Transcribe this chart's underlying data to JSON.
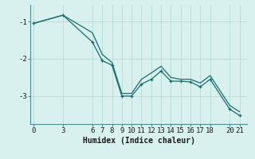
{
  "xlabel": "Humidex (Indice chaleur)",
  "background_color": "#d8f0ee",
  "line_color": "#1a6b6b",
  "marker": "+",
  "x_main": [
    0,
    3,
    6,
    7,
    8,
    9,
    10,
    11,
    12,
    13,
    14,
    15,
    16,
    17,
    18,
    20,
    21
  ],
  "y_main": [
    -1.05,
    -0.83,
    -1.55,
    -2.05,
    -2.17,
    -3.0,
    -3.0,
    -2.68,
    -2.55,
    -2.33,
    -2.6,
    -2.6,
    -2.62,
    -2.75,
    -2.55,
    -3.35,
    -3.52
  ],
  "x_upper": [
    0,
    3,
    6,
    7,
    8,
    9,
    10,
    11,
    12,
    13,
    14,
    15,
    16,
    17,
    18,
    20,
    21
  ],
  "y_upper": [
    -1.05,
    -0.83,
    -1.3,
    -1.88,
    -2.1,
    -2.93,
    -2.93,
    -2.55,
    -2.38,
    -2.2,
    -2.5,
    -2.55,
    -2.55,
    -2.65,
    -2.45,
    -3.25,
    -3.42
  ],
  "ylim": [
    -3.75,
    -0.55
  ],
  "xlim": [
    -0.3,
    21.8
  ],
  "yticks": [
    -3,
    -2,
    -1
  ],
  "xticks": [
    0,
    3,
    6,
    7,
    8,
    9,
    10,
    11,
    12,
    13,
    14,
    15,
    16,
    17,
    18,
    20,
    21
  ],
  "grid_color": "#b0d8d4",
  "spine_color": "#4a9090",
  "font_color": "#1a1a1a",
  "xlabel_fontsize": 7,
  "tick_fontsize": 6.5
}
